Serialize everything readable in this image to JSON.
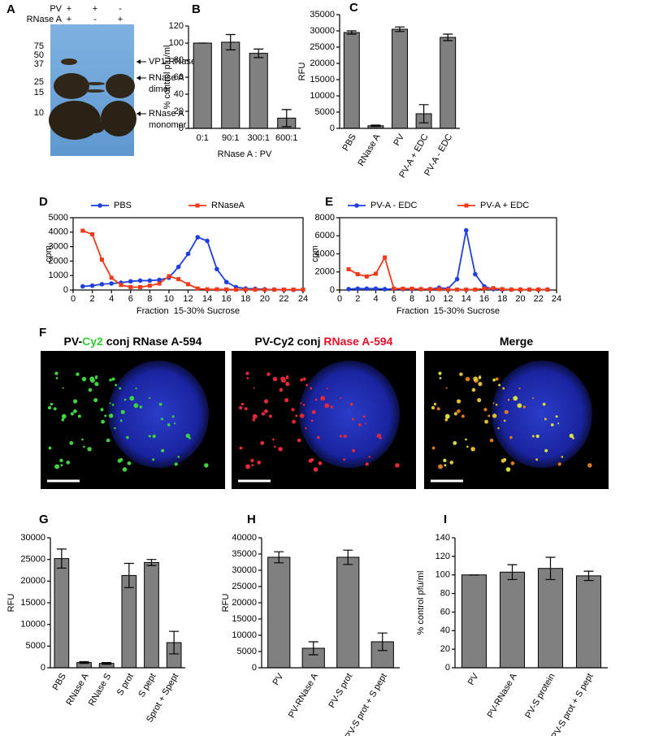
{
  "panel_labels": [
    "A",
    "B",
    "C",
    "D",
    "E",
    "F",
    "G",
    "H",
    "I"
  ],
  "blot": {
    "rows": [
      {
        "label": "PV",
        "signs": [
          "+",
          "+",
          "-"
        ]
      },
      {
        "label": "RNase A",
        "signs": [
          "+",
          "-",
          "+"
        ]
      }
    ],
    "markers": [
      75,
      50,
      37,
      25,
      15,
      10
    ],
    "annotations": [
      [
        "VP1-RNase A"
      ],
      [
        "RNase A",
        "dimer"
      ],
      [
        "RNase A",
        "monomer"
      ]
    ]
  },
  "micrographs": [
    {
      "title": [
        {
          "text": "PV-",
          "color": "#000000"
        },
        {
          "text": "Cy2",
          "color": "#33cc33"
        },
        {
          "text": " conj RNase A-594",
          "color": "#000000"
        }
      ]
    },
    {
      "title": [
        {
          "text": "PV-Cy2 conj ",
          "color": "#000000"
        },
        {
          "text": "RNase A-594",
          "color": "#e8102a"
        }
      ]
    },
    {
      "title": [
        {
          "text": "Merge",
          "color": "#000000"
        }
      ]
    }
  ],
  "chart_data": [
    {
      "type": "bar",
      "ylabel": "% control pfu/ml",
      "xlabel": "RNase A : PV",
      "categories": [
        "0:1",
        "90:1",
        "300:1",
        "600:1"
      ],
      "values": [
        100,
        101,
        88,
        12
      ],
      "errors": [
        0,
        9,
        5,
        10
      ],
      "color": "#808080",
      "ylim": [
        0,
        120
      ],
      "yticks": [
        0,
        20,
        40,
        60,
        80,
        100,
        120
      ]
    },
    {
      "type": "bar",
      "ylabel": "RFU",
      "categories": [
        "PBS",
        "RNase A",
        "PV",
        "PV-A + EDC",
        "PV-A - EDC"
      ],
      "values": [
        29500,
        800,
        30500,
        4500,
        28000
      ],
      "errors": [
        500,
        200,
        700,
        2800,
        1000
      ],
      "color": "#808080",
      "ylim": [
        0,
        35000
      ],
      "yticks": [
        0,
        5000,
        10000,
        15000,
        20000,
        25000,
        30000,
        35000
      ]
    },
    {
      "type": "line",
      "ylabel": "cpm",
      "xlabel": "Fraction  15-30% Sucrose",
      "x": [
        1,
        2,
        3,
        4,
        5,
        6,
        7,
        8,
        9,
        10,
        11,
        12,
        13,
        14,
        15,
        16,
        17,
        18,
        19,
        20,
        21,
        22,
        23,
        24
      ],
      "xlim": [
        0,
        24
      ],
      "xticks": [
        0,
        2,
        4,
        6,
        8,
        10,
        12,
        14,
        16,
        18,
        20,
        22,
        24
      ],
      "ylim": [
        0,
        5000
      ],
      "yticks": [
        0,
        1000,
        2000,
        3000,
        4000,
        5000
      ],
      "series": [
        {
          "name": "PBS",
          "color": "#1f3fe0",
          "marker": "circle",
          "values": [
            250,
            300,
            400,
            450,
            500,
            600,
            650,
            650,
            700,
            850,
            1600,
            2500,
            3650,
            3400,
            1450,
            550,
            200,
            100,
            80,
            50,
            30,
            20,
            10,
            10
          ]
        },
        {
          "name": "RNaseA",
          "color": "#f03a1a",
          "marker": "square",
          "values": [
            4100,
            3850,
            2100,
            850,
            350,
            200,
            200,
            300,
            450,
            950,
            750,
            400,
            100,
            50,
            50,
            40,
            30,
            30,
            30,
            30,
            30,
            30,
            30,
            30
          ]
        }
      ]
    },
    {
      "type": "line",
      "ylabel": "cpm",
      "xlabel": "Fraction  15-30% Sucrose",
      "x": [
        1,
        2,
        3,
        4,
        5,
        6,
        7,
        8,
        9,
        10,
        11,
        12,
        13,
        14,
        15,
        16,
        17,
        18,
        19,
        20,
        21,
        22,
        23,
        24
      ],
      "xlim": [
        0,
        24
      ],
      "xticks": [
        0,
        2,
        4,
        6,
        8,
        10,
        12,
        14,
        16,
        18,
        20,
        22,
        24
      ],
      "ylim": [
        0,
        8000
      ],
      "yticks": [
        0,
        2000,
        4000,
        6000,
        8000
      ],
      "series": [
        {
          "name": "PV-A - EDC",
          "color": "#1f3fe0",
          "marker": "circle",
          "values": [
            100,
            150,
            150,
            150,
            100,
            100,
            100,
            100,
            100,
            100,
            250,
            150,
            1200,
            6600,
            1750,
            400,
            100,
            50,
            50,
            50,
            50,
            50,
            50,
            null
          ]
        },
        {
          "name": "PV-A + EDC",
          "color": "#f03a1a",
          "marker": "square",
          "values": [
            2300,
            1750,
            1500,
            1800,
            3600,
            150,
            150,
            150,
            100,
            100,
            100,
            50,
            50,
            50,
            50,
            150,
            200,
            100,
            50,
            50,
            50,
            50,
            50,
            null
          ]
        }
      ]
    },
    {
      "type": "bar",
      "ylabel": "RFU",
      "categories": [
        "PBS",
        "RNase A",
        "RNase S",
        "S prot",
        "S pept",
        "Sprot + Spept"
      ],
      "values": [
        25200,
        1200,
        1000,
        21300,
        24300,
        5800
      ],
      "errors": [
        2200,
        200,
        200,
        2800,
        700,
        2600
      ],
      "color": "#808080",
      "ylim": [
        0,
        30000
      ],
      "yticks": [
        0,
        5000,
        10000,
        15000,
        20000,
        25000,
        30000
      ]
    },
    {
      "type": "bar",
      "ylabel": "RFU",
      "categories": [
        "PV",
        "PV-RNase A",
        "PV-S prot",
        "PV-S prot + S pept"
      ],
      "values": [
        34000,
        6000,
        34000,
        8000
      ],
      "errors": [
        1700,
        2000,
        2200,
        2700
      ],
      "color": "#808080",
      "ylim": [
        0,
        40000
      ],
      "yticks": [
        0,
        5000,
        10000,
        15000,
        20000,
        25000,
        30000,
        35000,
        40000
      ]
    },
    {
      "type": "bar",
      "ylabel": "% control pfu/ml",
      "categories": [
        "PV",
        "PV-RNase A",
        "PV-S protein",
        "PV-S prot + S pept"
      ],
      "values": [
        100,
        103,
        107,
        99
      ],
      "errors": [
        0,
        8,
        12,
        5
      ],
      "color": "#808080",
      "ylim": [
        0,
        140
      ],
      "yticks": [
        0,
        20,
        40,
        60,
        80,
        100,
        120,
        140
      ]
    }
  ]
}
